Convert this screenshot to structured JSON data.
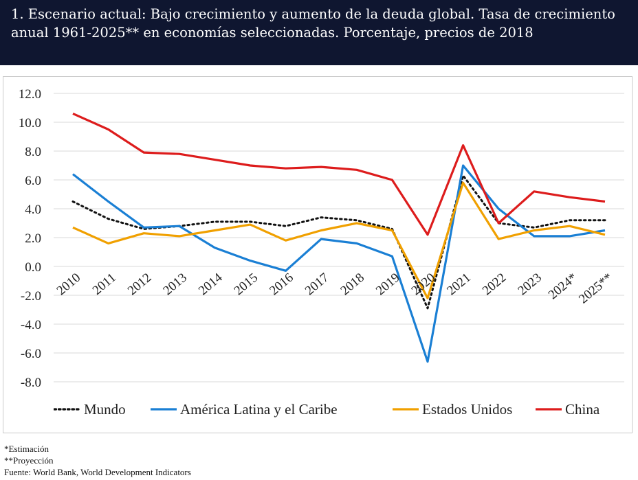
{
  "header": {
    "title": "1. Escenario actual:  Bajo crecimiento y aumento de la deuda global. Tasa de crecimiento anual 1961-2025** en economías seleccionadas. Porcentaje, precios de 2018"
  },
  "chart_data": {
    "type": "line",
    "title": "1. Escenario actual:  Bajo crecimiento y aumento de la deuda global. Tasa de crecimiento anual 1961-2025** en economías seleccionadas. Porcentaje, precios de 2018",
    "categories": [
      "2010",
      "2011",
      "2012",
      "2013",
      "2014",
      "2015",
      "2016",
      "2017",
      "2018",
      "2019",
      "2020",
      "2021",
      "2022",
      "2023",
      "2024*",
      "2025**"
    ],
    "ylim": [
      -8,
      12
    ],
    "yticks": [
      "12.0",
      "10.0",
      "8.0",
      "6.0",
      "4.0",
      "2.0",
      "0.0",
      "-2.0",
      "-4.0",
      "-6.0",
      "-8.0"
    ],
    "grid": true,
    "legend_position": "bottom",
    "series": [
      {
        "name": "Mundo",
        "color": "#111111",
        "style": "dotted",
        "values": [
          4.5,
          3.3,
          2.6,
          2.8,
          3.1,
          3.1,
          2.8,
          3.4,
          3.2,
          2.6,
          -2.9,
          6.3,
          3.0,
          2.7,
          3.2,
          3.2
        ]
      },
      {
        "name": "América Latina y el Caribe",
        "color": "#1a7fd4",
        "style": "solid",
        "values": [
          6.4,
          4.5,
          2.7,
          2.8,
          1.3,
          0.4,
          -0.3,
          1.9,
          1.6,
          0.7,
          -6.6,
          7.0,
          4.0,
          2.1,
          2.1,
          2.5
        ]
      },
      {
        "name": "Estados Unidos",
        "color": "#f0a000",
        "style": "solid",
        "values": [
          2.7,
          1.6,
          2.3,
          2.1,
          2.5,
          2.9,
          1.8,
          2.5,
          3.0,
          2.5,
          -2.2,
          5.8,
          1.9,
          2.5,
          2.8,
          2.2
        ]
      },
      {
        "name": "China",
        "color": "#dd1c1c",
        "style": "solid",
        "values": [
          10.6,
          9.5,
          7.9,
          7.8,
          7.4,
          7.0,
          6.8,
          6.9,
          6.7,
          6.0,
          2.2,
          8.4,
          3.0,
          5.2,
          4.8,
          4.5
        ]
      }
    ]
  },
  "footnotes": {
    "estimate": "*Estimación",
    "projection": "**Proyección",
    "source": "Fuente: World Bank, World Development Indicators"
  }
}
